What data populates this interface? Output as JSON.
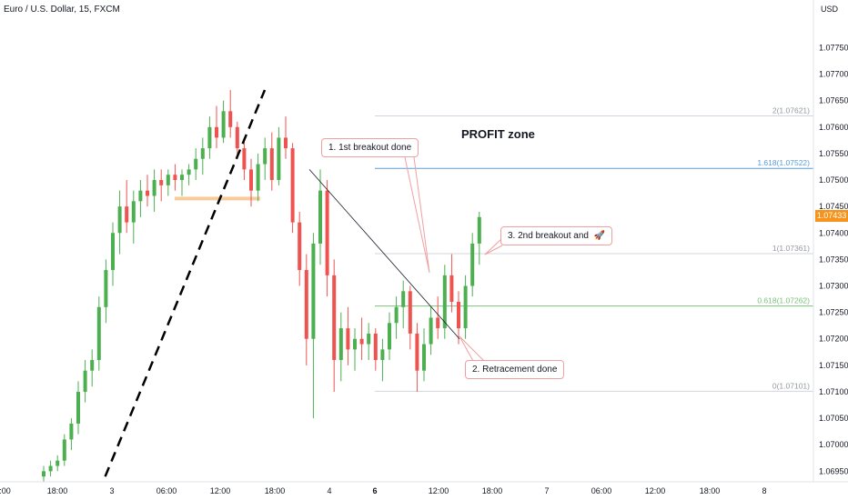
{
  "chart_header": {
    "symbol": "Euro / U.S. Dollar, 15, FXCM",
    "currency": "USD"
  },
  "last_price": "1.07433",
  "annotations": {
    "profit_zone": "PROFIT zone",
    "breakout1": "1. 1st breakout done",
    "retracement": "2. Retracement done",
    "breakout2": "3. 2nd breakout and"
  },
  "colors": {
    "up": "#26a69a",
    "down": "#ef5350",
    "candle_up": "#4caf50",
    "fib_line": "#d1d4dc",
    "fib_1618": "#5b9bd5",
    "fib_0618": "#7cbf7c",
    "accent": "#f7931a"
  },
  "chart_data": {
    "type": "candlestick",
    "title": "Euro / U.S. Dollar, 15, FXCM",
    "ylabel": "USD",
    "ylim": [
      1.0693,
      1.0784
    ],
    "y_ticks": [
      "1.07700",
      "1.07650",
      "1.07600",
      "1.07550",
      "1.07500",
      "1.07450",
      "1.07400",
      "1.07350",
      "1.07300",
      "1.07250",
      "1.07200",
      "1.07150",
      "1.07100",
      "1.07050",
      "1.07000",
      "1.06950"
    ],
    "y_ticks_top": "1.07750",
    "x_ticks": [
      "2:00",
      "18:00",
      "3",
      "06:00",
      "12:00",
      "18:00",
      "4",
      "6",
      "12:00",
      "18:00",
      "7",
      "06:00",
      "12:00",
      "18:00",
      "8"
    ],
    "fib_levels": [
      {
        "label": "2(1.07621)",
        "value": 1.07621
      },
      {
        "label": "1.618(1.07522)",
        "value": 1.07522
      },
      {
        "label": "1(1.07361)",
        "value": 1.07361
      },
      {
        "label": "0.618(1.07262)",
        "value": 1.07262
      },
      {
        "label": "0(1.07101)",
        "value": 1.07101
      }
    ],
    "last_price": 1.07433,
    "support_level": 1.07465,
    "trendline_start": {
      "bar": 1,
      "price": 1.0694
    },
    "trendline_end": {
      "bar": 30,
      "price": 1.0767
    },
    "down_trendline_start": {
      "bar": 40,
      "price": 1.0752
    },
    "down_trendline_end": {
      "bar": 58,
      "price": 1.072
    },
    "candles": [
      [
        1.0694,
        1.0696,
        1.0693,
        1.0695
      ],
      [
        1.0695,
        1.0697,
        1.0694,
        1.0696
      ],
      [
        1.0696,
        1.0698,
        1.0695,
        1.0697
      ],
      [
        1.0697,
        1.0702,
        1.0696,
        1.0701
      ],
      [
        1.0701,
        1.0705,
        1.0699,
        1.0704
      ],
      [
        1.0704,
        1.0712,
        1.0702,
        1.071
      ],
      [
        1.071,
        1.0716,
        1.0708,
        1.0714
      ],
      [
        1.0714,
        1.0718,
        1.0711,
        1.0716
      ],
      [
        1.0716,
        1.0728,
        1.0714,
        1.0726
      ],
      [
        1.0726,
        1.0735,
        1.0723,
        1.0733
      ],
      [
        1.0733,
        1.0742,
        1.073,
        1.074
      ],
      [
        1.074,
        1.0748,
        1.0736,
        1.0745
      ],
      [
        1.0745,
        1.075,
        1.074,
        1.0742
      ],
      [
        1.0742,
        1.0748,
        1.0738,
        1.0746
      ],
      [
        1.0746,
        1.075,
        1.0743,
        1.0748
      ],
      [
        1.0748,
        1.0751,
        1.0745,
        1.0747
      ],
      [
        1.0747,
        1.0752,
        1.0744,
        1.075
      ],
      [
        1.075,
        1.0752,
        1.0746,
        1.0749
      ],
      [
        1.0749,
        1.0752,
        1.0747,
        1.0751
      ],
      [
        1.0751,
        1.0753,
        1.0748,
        1.075
      ],
      [
        1.075,
        1.0752,
        1.0747,
        1.0751
      ],
      [
        1.0751,
        1.0753,
        1.0749,
        1.0752
      ],
      [
        1.0752,
        1.0756,
        1.075,
        1.0754
      ],
      [
        1.0754,
        1.0758,
        1.0751,
        1.0756
      ],
      [
        1.0756,
        1.0762,
        1.0754,
        1.076
      ],
      [
        1.076,
        1.0764,
        1.0756,
        1.0758
      ],
      [
        1.0758,
        1.0765,
        1.0757,
        1.0763
      ],
      [
        1.0763,
        1.0767,
        1.0758,
        1.076
      ],
      [
        1.076,
        1.0761,
        1.0754,
        1.0756
      ],
      [
        1.0756,
        1.0758,
        1.075,
        1.0752
      ],
      [
        1.0752,
        1.0754,
        1.0745,
        1.0748
      ],
      [
        1.0748,
        1.0755,
        1.0746,
        1.0753
      ],
      [
        1.0753,
        1.0758,
        1.075,
        1.0756
      ],
      [
        1.0756,
        1.0759,
        1.0748,
        1.075
      ],
      [
        1.075,
        1.076,
        1.0749,
        1.0758
      ],
      [
        1.0758,
        1.0762,
        1.0754,
        1.0756
      ],
      [
        1.0756,
        1.0757,
        1.074,
        1.0742
      ],
      [
        1.0742,
        1.0744,
        1.073,
        1.0733
      ],
      [
        1.0733,
        1.0736,
        1.0715,
        1.072
      ],
      [
        1.072,
        1.074,
        1.0705,
        1.0738
      ],
      [
        1.0738,
        1.0752,
        1.0734,
        1.0748
      ],
      [
        1.0748,
        1.075,
        1.0728,
        1.0732
      ],
      [
        1.0732,
        1.0735,
        1.071,
        1.0716
      ],
      [
        1.0716,
        1.0725,
        1.0712,
        1.0722
      ],
      [
        1.0722,
        1.0726,
        1.0715,
        1.0718
      ],
      [
        1.0718,
        1.0722,
        1.0714,
        1.072
      ],
      [
        1.072,
        1.0724,
        1.0716,
        1.0719
      ],
      [
        1.0719,
        1.0723,
        1.0716,
        1.0721
      ],
      [
        1.0721,
        1.0722,
        1.0714,
        1.0716
      ],
      [
        1.0716,
        1.072,
        1.0712,
        1.0718
      ],
      [
        1.0718,
        1.0725,
        1.0716,
        1.0723
      ],
      [
        1.0723,
        1.0728,
        1.072,
        1.0726
      ],
      [
        1.0726,
        1.0731,
        1.0722,
        1.0729
      ],
      [
        1.0729,
        1.073,
        1.0718,
        1.0721
      ],
      [
        1.0721,
        1.0723,
        1.071,
        1.0714
      ],
      [
        1.0714,
        1.0722,
        1.0712,
        1.0719
      ],
      [
        1.0719,
        1.0726,
        1.0717,
        1.0724
      ],
      [
        1.0724,
        1.0728,
        1.072,
        1.0722
      ],
      [
        1.0722,
        1.0734,
        1.072,
        1.0732
      ],
      [
        1.0732,
        1.0736,
        1.0725,
        1.0727
      ],
      [
        1.0727,
        1.0729,
        1.0719,
        1.0722
      ],
      [
        1.0722,
        1.0732,
        1.072,
        1.073
      ],
      [
        1.073,
        1.074,
        1.0728,
        1.0738
      ],
      [
        1.0738,
        1.0744,
        1.0734,
        1.0743
      ]
    ]
  }
}
